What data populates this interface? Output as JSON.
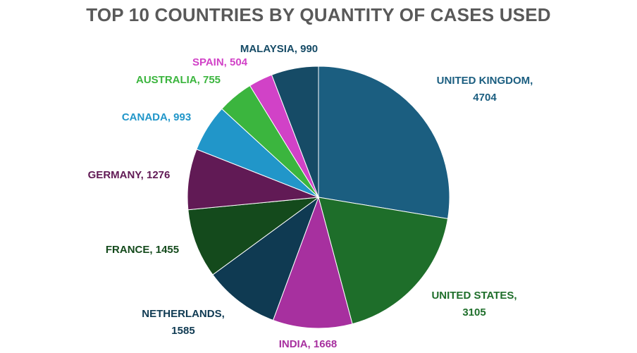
{
  "chart_data": {
    "type": "pie",
    "title": "TOP 10 COUNTRIES BY QUANTITY OF CASES USED",
    "slices": [
      {
        "label": "UNITED KINGDOM",
        "value": 4704,
        "color": "#1B5E80"
      },
      {
        "label": "UNITED STATES",
        "value": 3105,
        "color": "#1E6E2A"
      },
      {
        "label": "INDIA",
        "value": 1668,
        "color": "#A7309F"
      },
      {
        "label": "NETHERLANDS",
        "value": 1585,
        "color": "#0F3A52"
      },
      {
        "label": "FRANCE",
        "value": 1455,
        "color": "#144A1C"
      },
      {
        "label": "GERMANY",
        "value": 1276,
        "color": "#611A55"
      },
      {
        "label": "CANADA",
        "value": 993,
        "color": "#2196C9"
      },
      {
        "label": "AUSTRALIA",
        "value": 755,
        "color": "#3BB53E"
      },
      {
        "label": "SPAIN",
        "value": 504,
        "color": "#D142C7"
      },
      {
        "label": "MALAYSIA",
        "value": 990,
        "color": "#164B66"
      }
    ],
    "labels": [
      {
        "line1": "UNITED KINGDOM,",
        "line2": "4704"
      },
      {
        "line1": "UNITED STATES,",
        "line2": "3105"
      },
      {
        "line1": "INDIA, 1668",
        "line2": ""
      },
      {
        "line1": "NETHERLANDS,",
        "line2": "1585"
      },
      {
        "line1": "FRANCE, 1455",
        "line2": ""
      },
      {
        "line1": "GERMANY, 1276",
        "line2": ""
      },
      {
        "line1": "CANADA, 993",
        "line2": ""
      },
      {
        "line1": "AUSTRALIA, 755",
        "line2": ""
      },
      {
        "line1": "SPAIN, 504",
        "line2": ""
      },
      {
        "line1": "MALAYSIA, 990",
        "line2": ""
      }
    ],
    "start_angle_deg": 0,
    "direction": "clockwise",
    "legend": "none"
  }
}
